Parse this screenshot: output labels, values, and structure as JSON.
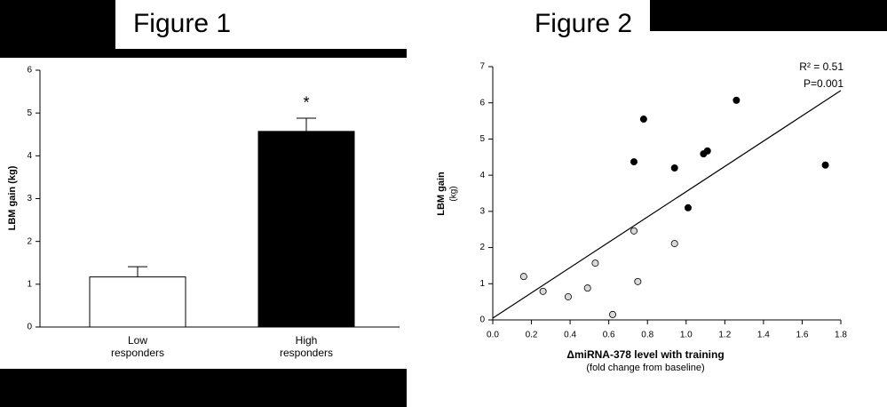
{
  "chart_data": [
    {
      "type": "bar",
      "title": "Figure 1",
      "y_label": "LBM gain (kg)",
      "categories": [
        "Low responders",
        "High responders"
      ],
      "values": [
        1.17,
        4.57
      ],
      "errors": [
        0.24,
        0.31
      ],
      "colors": [
        "#ffffff",
        "#000000"
      ],
      "annotation": "*",
      "ylim": [
        0,
        6
      ],
      "yticks": [
        0,
        1,
        2,
        3,
        4,
        5,
        6
      ]
    },
    {
      "type": "scatter",
      "title": "Figure 2",
      "y_label": [
        "LBM gain",
        "(kg)"
      ],
      "x_label": "ΔmiRNA-378 level with training",
      "x_sublabel": "(fold change from baseline)",
      "annotations": [
        "R² = 0.51",
        "P=0.001"
      ],
      "series": [
        {
          "color": "#000000",
          "x": [
            0.73,
            0.78,
            0.94,
            1.01,
            1.09,
            1.11,
            1.26,
            1.72
          ],
          "values": [
            4.37,
            5.55,
            4.2,
            3.1,
            4.59,
            4.67,
            6.07,
            4.28
          ]
        },
        {
          "color": "#d9d9d9",
          "x": [
            0.16,
            0.26,
            0.39,
            0.49,
            0.53,
            0.62,
            0.73,
            0.75,
            0.94
          ],
          "values": [
            1.2,
            0.79,
            0.64,
            0.88,
            1.57,
            0.15,
            2.46,
            1.06,
            2.11
          ]
        }
      ],
      "trendline": {
        "x": [
          0,
          1.8
        ],
        "values": [
          0.05,
          6.34
        ]
      },
      "xlim": [
        0,
        1.8
      ],
      "xticks": [
        {
          "value": 0,
          "label": "0.0"
        },
        0.2,
        0.4,
        0.6,
        0.8,
        {
          "value": 1,
          "label": "1.0"
        },
        1.2,
        1.4,
        1.6,
        1.8
      ],
      "ylim": [
        0,
        7
      ],
      "yticks": [
        0,
        1,
        2,
        3,
        4,
        5,
        6,
        7
      ]
    }
  ]
}
